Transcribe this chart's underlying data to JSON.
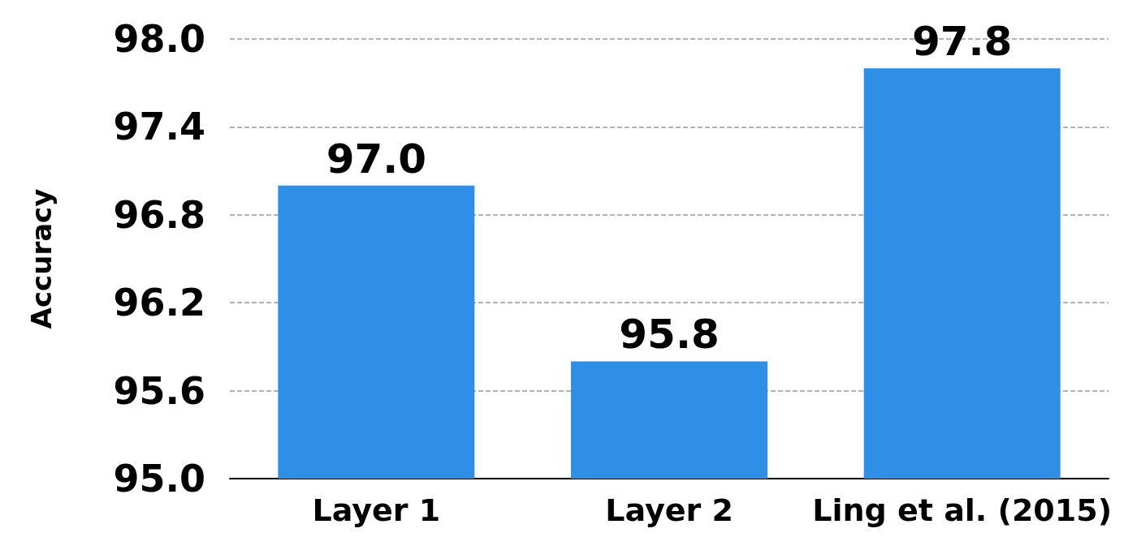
{
  "chart_data": {
    "type": "bar",
    "ylabel": "Accuracy",
    "categories": [
      "Layer 1",
      "Layer 2",
      "Ling et al. (2015)"
    ],
    "values": [
      97.0,
      95.8,
      97.8
    ],
    "color": "#2f8ee6",
    "ylim": [
      95.0,
      98.0
    ],
    "yticks": [
      {
        "value": 95.0,
        "label": "95.0"
      },
      {
        "value": 95.6,
        "label": "95.6"
      },
      {
        "value": 96.2,
        "label": "96.2"
      },
      {
        "value": 96.8,
        "label": "96.8"
      },
      {
        "value": 97.4,
        "label": "97.4"
      },
      {
        "value": 98.0,
        "label": "98.0"
      }
    ],
    "grid": "y",
    "value_labels": [
      "97.0",
      "95.8",
      "97.8"
    ]
  }
}
